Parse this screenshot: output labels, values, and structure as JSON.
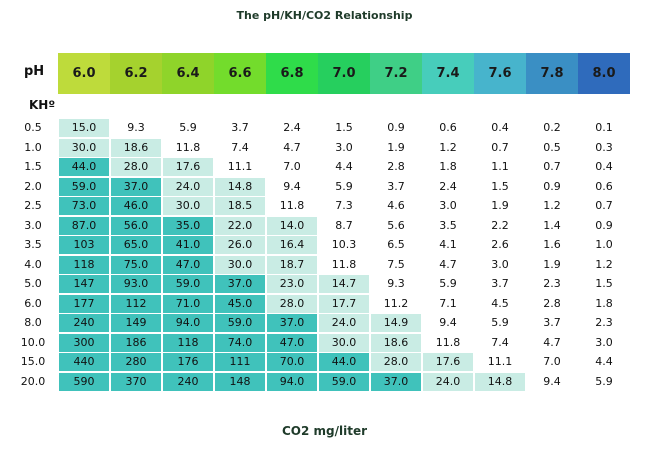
{
  "chart_data": {
    "type": "table",
    "title": "The pH/KH/CO2 Relationship",
    "row_header_label": "pH",
    "column_header_label": "KHº",
    "footer_label": "CO2 mg/liter",
    "ph_values": [
      "6.0",
      "6.2",
      "6.4",
      "6.6",
      "6.8",
      "7.0",
      "7.2",
      "7.4",
      "7.6",
      "7.8",
      "8.0"
    ],
    "ph_colors": [
      "#bedb3b",
      "#a5d22e",
      "#8fd42a",
      "#73dc2c",
      "#2fdc4a",
      "#26cf5e",
      "#3fcf86",
      "#47cdbb",
      "#47b4cc",
      "#3a8fc4",
      "#2f6bbc"
    ],
    "rows": [
      {
        "kh": "0.5",
        "values": [
          "15.0",
          "9.3",
          "5.9",
          "3.7",
          "2.4",
          "1.5",
          "0.9",
          "0.6",
          "0.4",
          "0.2",
          "0.1"
        ],
        "levels": [
          1,
          0,
          0,
          0,
          0,
          0,
          0,
          0,
          0,
          0,
          0
        ]
      },
      {
        "kh": "1.0",
        "values": [
          "30.0",
          "18.6",
          "11.8",
          "7.4",
          "4.7",
          "3.0",
          "1.9",
          "1.2",
          "0.7",
          "0.5",
          "0.3"
        ],
        "levels": [
          1,
          1,
          0,
          0,
          0,
          0,
          0,
          0,
          0,
          0,
          0
        ]
      },
      {
        "kh": "1.5",
        "values": [
          "44.0",
          "28.0",
          "17.6",
          "11.1",
          "7.0",
          "4.4",
          "2.8",
          "1.8",
          "1.1",
          "0.7",
          "0.4"
        ],
        "levels": [
          2,
          1,
          1,
          0,
          0,
          0,
          0,
          0,
          0,
          0,
          0
        ]
      },
      {
        "kh": "2.0",
        "values": [
          "59.0",
          "37.0",
          "24.0",
          "14.8",
          "9.4",
          "5.9",
          "3.7",
          "2.4",
          "1.5",
          "0.9",
          "0.6"
        ],
        "levels": [
          2,
          2,
          1,
          1,
          0,
          0,
          0,
          0,
          0,
          0,
          0
        ]
      },
      {
        "kh": "2.5",
        "values": [
          "73.0",
          "46.0",
          "30.0",
          "18.5",
          "11.8",
          "7.3",
          "4.6",
          "3.0",
          "1.9",
          "1.2",
          "0.7"
        ],
        "levels": [
          2,
          2,
          1,
          1,
          0,
          0,
          0,
          0,
          0,
          0,
          0
        ]
      },
      {
        "kh": "3.0",
        "values": [
          "87.0",
          "56.0",
          "35.0",
          "22.0",
          "14.0",
          "8.7",
          "5.6",
          "3.5",
          "2.2",
          "1.4",
          "0.9"
        ],
        "levels": [
          2,
          2,
          2,
          1,
          1,
          0,
          0,
          0,
          0,
          0,
          0
        ]
      },
      {
        "kh": "3.5",
        "values": [
          "103",
          "65.0",
          "41.0",
          "26.0",
          "16.4",
          "10.3",
          "6.5",
          "4.1",
          "2.6",
          "1.6",
          "1.0"
        ],
        "levels": [
          2,
          2,
          2,
          1,
          1,
          0,
          0,
          0,
          0,
          0,
          0
        ]
      },
      {
        "kh": "4.0",
        "values": [
          "118",
          "75.0",
          "47.0",
          "30.0",
          "18.7",
          "11.8",
          "7.5",
          "4.7",
          "3.0",
          "1.9",
          "1.2"
        ],
        "levels": [
          2,
          2,
          2,
          1,
          1,
          0,
          0,
          0,
          0,
          0,
          0
        ]
      },
      {
        "kh": "5.0",
        "values": [
          "147",
          "93.0",
          "59.0",
          "37.0",
          "23.0",
          "14.7",
          "9.3",
          "5.9",
          "3.7",
          "2.3",
          "1.5"
        ],
        "levels": [
          2,
          2,
          2,
          2,
          1,
          1,
          0,
          0,
          0,
          0,
          0
        ]
      },
      {
        "kh": "6.0",
        "values": [
          "177",
          "112",
          "71.0",
          "45.0",
          "28.0",
          "17.7",
          "11.2",
          "7.1",
          "4.5",
          "2.8",
          "1.8"
        ],
        "levels": [
          2,
          2,
          2,
          2,
          1,
          1,
          0,
          0,
          0,
          0,
          0
        ]
      },
      {
        "kh": "8.0",
        "values": [
          "240",
          "149",
          "94.0",
          "59.0",
          "37.0",
          "24.0",
          "14.9",
          "9.4",
          "5.9",
          "3.7",
          "2.3"
        ],
        "levels": [
          2,
          2,
          2,
          2,
          2,
          1,
          1,
          0,
          0,
          0,
          0
        ]
      },
      {
        "kh": "10.0",
        "values": [
          "300",
          "186",
          "118",
          "74.0",
          "47.0",
          "30.0",
          "18.6",
          "11.8",
          "7.4",
          "4.7",
          "3.0"
        ],
        "levels": [
          2,
          2,
          2,
          2,
          2,
          1,
          1,
          0,
          0,
          0,
          0
        ]
      },
      {
        "kh": "15.0",
        "values": [
          "440",
          "280",
          "176",
          "111",
          "70.0",
          "44.0",
          "28.0",
          "17.6",
          "11.1",
          "7.0",
          "4.4"
        ],
        "levels": [
          2,
          2,
          2,
          2,
          2,
          2,
          1,
          1,
          0,
          0,
          0
        ]
      },
      {
        "kh": "20.0",
        "values": [
          "590",
          "370",
          "240",
          "148",
          "94.0",
          "59.0",
          "37.0",
          "24.0",
          "14.8",
          "9.4",
          "5.9"
        ],
        "levels": [
          2,
          2,
          2,
          2,
          2,
          2,
          2,
          1,
          1,
          0,
          0
        ]
      }
    ]
  }
}
